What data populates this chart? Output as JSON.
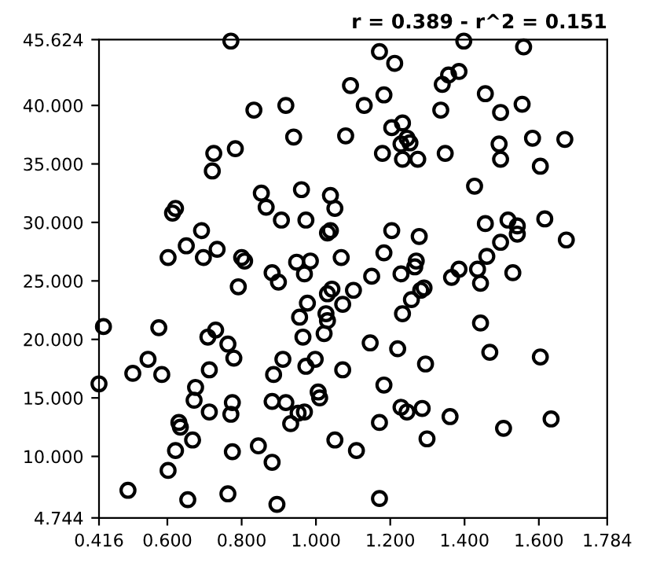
{
  "chart_data": {
    "type": "scatter",
    "annotations": [
      "r = 0.389 - r^2 = 0.151"
    ],
    "x": [
      0.771,
      0.833,
      0.919,
      0.94,
      0.725,
      0.783,
      0.721,
      0.853,
      0.961,
      0.866,
      1.039,
      0.622,
      0.614,
      0.907,
      0.973,
      0.692,
      0.651,
      0.734,
      0.602,
      0.697,
      0.8,
      0.808,
      0.882,
      0.948,
      0.985,
      0.969,
      1.031,
      1.039,
      0.791,
      1.398,
      1.171,
      1.212,
      1.559,
      1.385,
      1.357,
      1.34,
      1.093,
      1.13,
      1.183,
      1.456,
      1.555,
      1.497,
      1.336,
      1.204,
      1.233,
      1.08,
      1.245,
      1.253,
      1.229,
      1.179,
      1.233,
      1.274,
      1.348,
      1.493,
      1.497,
      1.583,
      1.67,
      1.604,
      1.427,
      1.051,
      1.616,
      1.456,
      1.517,
      1.542,
      1.542,
      1.204,
      1.278,
      1.674,
      1.497,
      1.183,
      1.068,
      1.27,
      1.266,
      1.46,
      1.15,
      1.229,
      1.385,
      1.365,
      1.435,
      1.53,
      0.899,
      1.043,
      1.031,
      0.977,
      1.027,
      1.031,
      0.956,
      0.965,
      1.022,
      0.428,
      0.577,
      0.709,
      0.73,
      0.763,
      0.779,
      0.548,
      0.507,
      0.585,
      0.713,
      0.911,
      0.998,
      0.973,
      0.886,
      0.416,
      0.676,
      0.672,
      0.775,
      0.882,
      0.919,
      1.006,
      1.01,
      0.713,
      0.771,
      0.952,
      0.969,
      0.932,
      0.631,
      0.635,
      0.668,
      1.051,
      0.622,
      0.775,
      0.845,
      0.882,
      0.602,
      0.494,
      0.763,
      0.655,
      0.895,
      1.443,
      1.072,
      1.101,
      1.291,
      1.282,
      1.257,
      1.233,
      1.443,
      1.146,
      1.22,
      1.468,
      1.604,
      1.295,
      1.072,
      1.183,
      1.229,
      1.245,
      1.286,
      1.361,
      1.633,
      1.171,
      1.505,
      1.299,
      1.109,
      1.171
    ],
    "values": [
      45.5,
      39.6,
      40.0,
      37.3,
      35.9,
      36.3,
      34.4,
      32.5,
      32.8,
      31.3,
      32.3,
      31.2,
      30.8,
      30.2,
      30.2,
      29.3,
      28.0,
      27.7,
      27.0,
      27.0,
      27.0,
      26.7,
      25.7,
      26.6,
      26.7,
      25.6,
      29.1,
      29.3,
      24.5,
      45.5,
      44.6,
      43.6,
      45.0,
      42.9,
      42.6,
      41.8,
      41.7,
      40.0,
      40.9,
      41.0,
      40.1,
      39.4,
      39.6,
      38.1,
      38.5,
      37.4,
      37.2,
      36.8,
      36.7,
      35.9,
      35.4,
      35.4,
      35.9,
      36.7,
      35.4,
      37.2,
      37.1,
      34.8,
      33.1,
      31.2,
      30.3,
      29.9,
      30.2,
      29.7,
      29.0,
      29.3,
      28.8,
      28.5,
      28.3,
      27.4,
      27.0,
      26.7,
      26.2,
      27.1,
      25.4,
      25.6,
      26.0,
      25.3,
      26.0,
      25.7,
      24.9,
      24.3,
      23.9,
      23.1,
      22.2,
      21.6,
      21.9,
      20.2,
      20.5,
      21.1,
      21.0,
      20.2,
      20.8,
      19.6,
      18.4,
      18.3,
      17.1,
      17.0,
      17.4,
      18.3,
      18.3,
      17.7,
      17.0,
      16.2,
      15.9,
      14.8,
      14.6,
      14.7,
      14.6,
      15.5,
      15.0,
      13.8,
      13.6,
      13.7,
      13.8,
      12.8,
      12.9,
      12.5,
      11.4,
      11.4,
      10.5,
      10.4,
      10.9,
      9.5,
      8.8,
      7.1,
      6.8,
      6.3,
      5.9,
      24.8,
      23.0,
      24.2,
      24.4,
      24.2,
      23.4,
      22.2,
      21.4,
      19.7,
      19.2,
      18.9,
      18.5,
      17.9,
      17.4,
      16.1,
      14.2,
      13.8,
      14.1,
      13.4,
      13.2,
      12.9,
      12.4,
      11.5,
      10.5,
      6.4
    ],
    "color": "#000000",
    "marker": "circle",
    "xlim": [
      0.416,
      1.784
    ],
    "xticks": [
      {
        "value": 0.416,
        "label": "0.416"
      },
      {
        "value": 0.6,
        "label": "0.600"
      },
      {
        "value": 0.8,
        "label": "0.800"
      },
      {
        "value": 1.0,
        "label": "1.000"
      },
      {
        "value": 1.2,
        "label": "1.200"
      },
      {
        "value": 1.4,
        "label": "1.400"
      },
      {
        "value": 1.6,
        "label": "1.600"
      },
      {
        "value": 1.784,
        "label": "1.784"
      }
    ],
    "ylim": [
      4.744,
      45.624
    ],
    "yticks": [
      {
        "value": 4.744,
        "label": "4.744"
      },
      {
        "value": 10,
        "label": "10.000"
      },
      {
        "value": 15,
        "label": "15.000"
      },
      {
        "value": 20,
        "label": "20.000"
      },
      {
        "value": 25,
        "label": "25.000"
      },
      {
        "value": 30,
        "label": "30.000"
      },
      {
        "value": 35,
        "label": "35.000"
      },
      {
        "value": 40,
        "label": "40.000"
      },
      {
        "value": 45.624,
        "label": "45.624"
      }
    ],
    "grid": false,
    "legend": false
  }
}
